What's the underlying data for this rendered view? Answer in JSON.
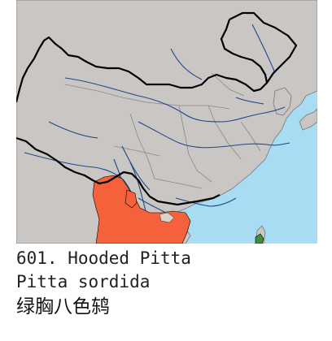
{
  "map": {
    "colors": {
      "sea": "#a7dcf2",
      "land": "#c9c6c4",
      "border": "#000000",
      "province_border": "#8a8a8a",
      "river": "#1e4a8c",
      "range_primary": "#f4613a",
      "range_secondary": "#d8d2cc",
      "taiwan_range": "#3e8c3e"
    }
  },
  "caption": {
    "english": "601. Hooded Pitta",
    "scientific": "Pitta sordida",
    "chinese": "绿胸八色鸫"
  }
}
